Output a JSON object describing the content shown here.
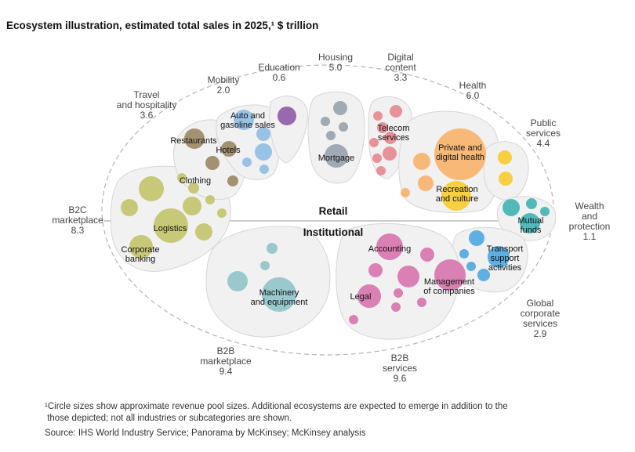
{
  "title": "Ecosystem illustration, estimated total sales in 2025,¹ $ trillion",
  "divider": {
    "top": "Retail",
    "bottom": "Institutional"
  },
  "ecosystems": [
    {
      "id": "b2c",
      "name": "B2C\nmarketplace",
      "value": "8.3"
    },
    {
      "id": "travel",
      "name": "Travel\nand hospitality",
      "value": "3.6"
    },
    {
      "id": "mobility",
      "name": "Mobility",
      "value": "2.0"
    },
    {
      "id": "education",
      "name": "Education",
      "value": "0.6"
    },
    {
      "id": "housing",
      "name": "Housing",
      "value": "5.0"
    },
    {
      "id": "digital",
      "name": "Digital\ncontent",
      "value": "3.3"
    },
    {
      "id": "health",
      "name": "Health",
      "value": "6.0"
    },
    {
      "id": "public",
      "name": "Public\nservices",
      "value": "4.4"
    },
    {
      "id": "wealth",
      "name": "Wealth\nand\nprotection",
      "value": "1.1"
    },
    {
      "id": "global",
      "name": "Global\ncorporate\nservices",
      "value": "2.9"
    },
    {
      "id": "b2bserv",
      "name": "B2B\nservices",
      "value": "9.6"
    },
    {
      "id": "b2bmkt",
      "name": "B2B\nmarketplace",
      "value": "9.4"
    }
  ],
  "subcategories": [
    {
      "id": "restaurants",
      "text": "Restaurants"
    },
    {
      "id": "hotels",
      "text": "Hotels"
    },
    {
      "id": "auto",
      "text": "Auto and\ngasoline sales"
    },
    {
      "id": "clothing",
      "text": "Clothing"
    },
    {
      "id": "logistics",
      "text": "Logistics"
    },
    {
      "id": "corporate",
      "text": "Corporate\nbanking"
    },
    {
      "id": "mortgage",
      "text": "Mortgage"
    },
    {
      "id": "telecom",
      "text": "Telecom\nservices"
    },
    {
      "id": "private",
      "text": "Private and\ndigital health"
    },
    {
      "id": "recreation",
      "text": "Recreation\nand culture"
    },
    {
      "id": "mutual",
      "text": "Mutual\nfunds"
    },
    {
      "id": "transport",
      "text": "Transport\nsupport\nactivities"
    },
    {
      "id": "accounting",
      "text": "Accounting"
    },
    {
      "id": "management",
      "text": "Management\nof companies"
    },
    {
      "id": "legal",
      "text": "Legal"
    },
    {
      "id": "machinery",
      "text": "Machinery\nand equipment"
    }
  ],
  "colors": {
    "b2c": "#c2c46a",
    "travel": "#9a8763",
    "mobility": "#8fbde6",
    "education": "#8e5aa6",
    "housing": "#97a2ad",
    "digital": "#e6868e",
    "health": "#f8b36a",
    "health_accent": "#f7cb2c",
    "public": "#f7cb2c",
    "wealth": "#3fb3b3",
    "global": "#4ea7e0",
    "b2bserv": "#d773ad",
    "b2bmkt": "#8fc3c9"
  },
  "footnote": "¹Circle sizes show approximate revenue pool sizes. Additional ecosystems are expected to emerge in addition to the\n those depicted; not all industries or subcategories are shown.",
  "source": "Source: IHS World Industry Service; Panorama by McKinsey; McKinsey analysis"
}
